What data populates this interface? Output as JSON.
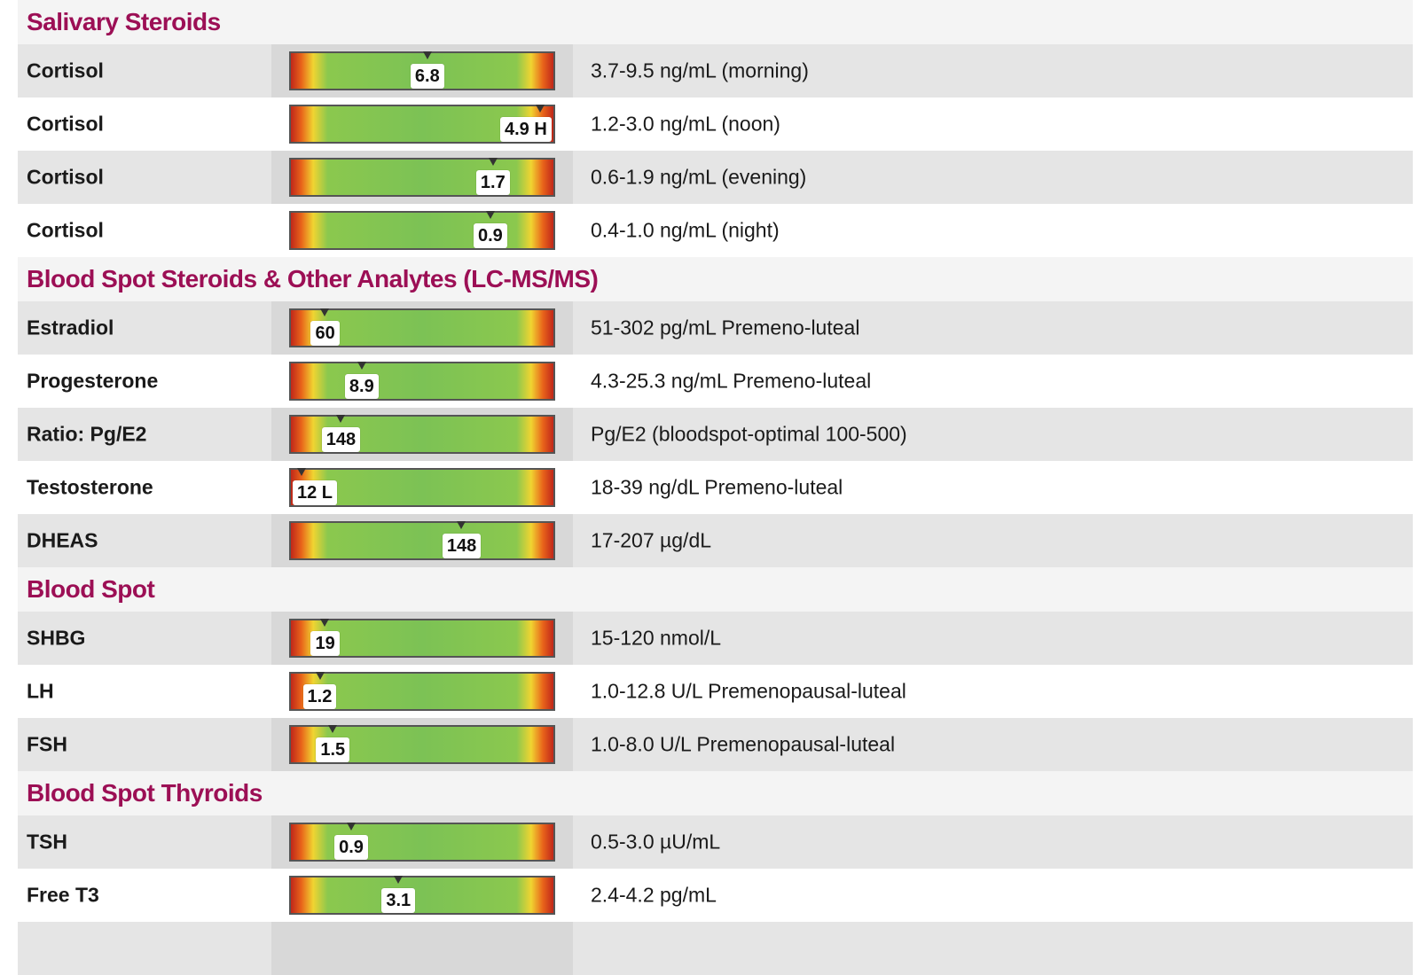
{
  "sections": [
    {
      "title": "Salivary Steroids",
      "rows": [
        {
          "name": "Cortisol",
          "value": "6.8",
          "marker": 0.52,
          "range": "3.7-9.5 ng/mL (morning)"
        },
        {
          "name": "Cortisol",
          "value": "4.9 H",
          "marker": 0.95,
          "range": "1.2-3.0 ng/mL (noon)"
        },
        {
          "name": "Cortisol",
          "value": "1.7",
          "marker": 0.77,
          "range": "0.6-1.9 ng/mL (evening)"
        },
        {
          "name": "Cortisol",
          "value": "0.9",
          "marker": 0.76,
          "range": "0.4-1.0 ng/mL (night)"
        }
      ]
    },
    {
      "title": "Blood Spot Steroids & Other Analytes (LC-MS/MS)",
      "rows": [
        {
          "name": "Estradiol",
          "value": "60",
          "marker": 0.13,
          "range": "51-302 pg/mL Premeno-luteal"
        },
        {
          "name": "Progesterone",
          "value": "8.9",
          "marker": 0.27,
          "range": "4.3-25.3 ng/mL Premeno-luteal"
        },
        {
          "name": "Ratio: Pg/E2",
          "value": "148",
          "marker": 0.19,
          "range": "Pg/E2 (bloodspot-optimal 100-500)"
        },
        {
          "name": "Testosterone",
          "value": "12 L",
          "marker": 0.04,
          "range": "18-39 ng/dL Premeno-luteal"
        },
        {
          "name": "DHEAS",
          "value": "148",
          "marker": 0.65,
          "range": "17-207 µg/dL"
        }
      ]
    },
    {
      "title": "Blood Spot",
      "rows": [
        {
          "name": "SHBG",
          "value": "19",
          "marker": 0.13,
          "range": "15-120 nmol/L"
        },
        {
          "name": "LH",
          "value": "1.2",
          "marker": 0.11,
          "range": "1.0-12.8 U/L Premenopausal-luteal"
        },
        {
          "name": "FSH",
          "value": "1.5",
          "marker": 0.16,
          "range": "1.0-8.0 U/L Premenopausal-luteal"
        }
      ]
    },
    {
      "title": "Blood Spot Thyroids",
      "rows": [
        {
          "name": "TSH",
          "value": "0.9",
          "marker": 0.23,
          "range": "0.5-3.0 µU/mL"
        },
        {
          "name": "Free T3",
          "value": "3.1",
          "marker": 0.41,
          "range": "2.4-4.2 pg/mL"
        },
        {
          "name": "",
          "value": "",
          "marker": null,
          "range": ""
        }
      ]
    }
  ],
  "colors": {
    "section_title": "#9c0f55",
    "row_shade": "#e5e5e5",
    "bar_cell_shade": "#d8d8d8",
    "gauge_red": "#c0271a",
    "gauge_yellow": "#f0d431",
    "gauge_green": "#7cc255"
  }
}
